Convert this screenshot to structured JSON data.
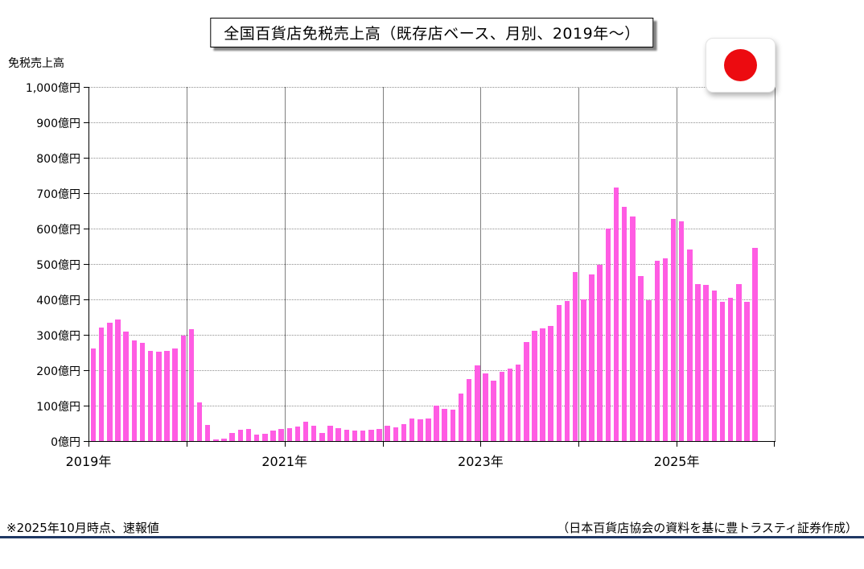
{
  "title": "全国百貨店免税売上高（既存店ベース、月別、2019年～）",
  "y_axis_title": "免税売上高",
  "footnote_left": "※2025年10月時点、速報値",
  "footnote_right": "（日本百貨店協会の資料を基に豊トラスティ証券作成）",
  "flag_icon": "japan-flag",
  "colors": {
    "bar": "#FF5CE3",
    "gridline": "#8f8f8f",
    "year_line": "#7f7f7f",
    "axis": "#000000",
    "footer_rule": "#1F3864",
    "flag_sun": "#EC0B10"
  },
  "chart_data": {
    "type": "bar",
    "title": "全国百貨店免税売上高（既存店ベース、月別、2019年～）",
    "xlabel": "",
    "ylabel": "免税売上高",
    "y_unit": "億円",
    "ylim": [
      0,
      1000
    ],
    "y_tick_step": 100,
    "y_tick_labels": [
      "1,000億円",
      "900億円",
      "800億円",
      "700億円",
      "600億円",
      "500億円",
      "400億円",
      "300億円",
      "200億円",
      "100億円",
      "0億円"
    ],
    "x_ticks": [
      {
        "label": "2019年",
        "year_offset": 0
      },
      {
        "label": "2021年",
        "year_offset": 2
      },
      {
        "label": "2023年",
        "year_offset": 4
      },
      {
        "label": "2025年",
        "year_offset": 6
      }
    ],
    "grid": true,
    "legend": false,
    "start_month": "2019-01",
    "end_month": "2025-10",
    "series": [
      {
        "name": "免税売上高（億円）",
        "values": [
          262,
          320,
          333,
          344,
          310,
          283,
          278,
          255,
          252,
          254,
          262,
          297,
          316,
          110,
          45,
          5,
          7,
          23,
          31,
          33,
          18,
          20,
          30,
          35,
          37,
          41,
          54,
          43,
          22,
          43,
          36,
          31,
          30,
          30,
          31,
          33,
          43,
          39,
          47,
          64,
          61,
          64,
          99,
          90,
          89,
          134,
          175,
          213,
          192,
          171,
          196,
          205,
          217,
          280,
          311,
          318,
          325,
          383,
          395,
          478,
          401,
          470,
          497,
          601,
          717,
          662,
          634,
          465,
          397,
          509,
          516,
          628,
          620,
          540,
          444,
          440,
          425,
          393,
          404,
          443,
          394,
          545
        ]
      }
    ]
  }
}
